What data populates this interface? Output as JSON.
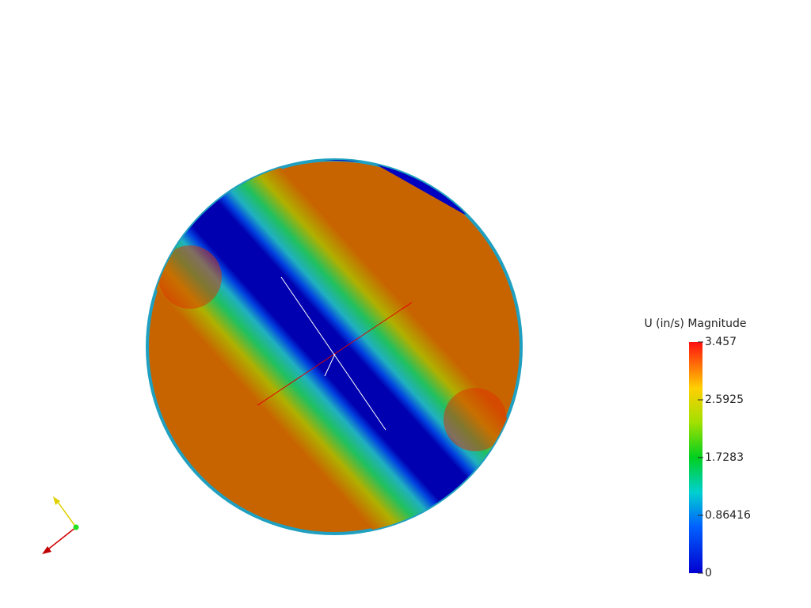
{
  "colorbar": {
    "title": "U (in/s) Magnitude",
    "range": [
      0,
      3.457
    ],
    "ticks": [
      0,
      0.86416,
      1.7283,
      2.5925,
      3.457
    ]
  }
}
